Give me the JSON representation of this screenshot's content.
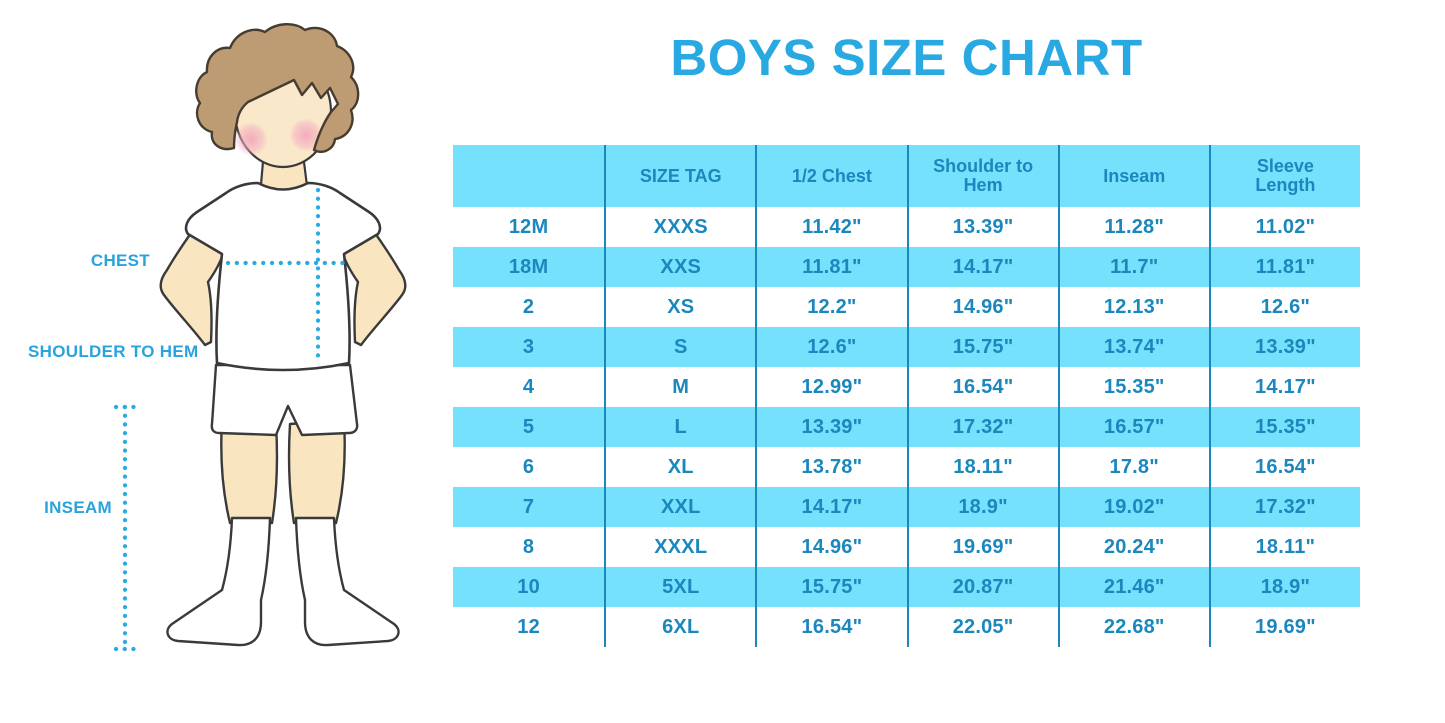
{
  "title": "BOYS SIZE CHART",
  "colors": {
    "accent_cyan_band": "#75E1FC",
    "table_text_blue": "#1A87BD",
    "title_blue": "#29A9E1",
    "dotted_line_blue": "#29ABE2"
  },
  "figure": {
    "description": "illustration of a boy in white t-shirt, shorts and knee socks with dotted measurement guides",
    "labels": {
      "chest": "CHEST",
      "shoulder_to_hem": "SHOULDER TO HEM",
      "inseam": "INSEAM"
    }
  },
  "chart_data": {
    "type": "table",
    "title": "BOYS SIZE CHART",
    "columns": [
      "",
      "SIZE TAG",
      "1/2 Chest",
      "Shoulder to Hem",
      "Inseam",
      "Sleeve Length"
    ],
    "rows": [
      [
        "12M",
        "XXXS",
        "11.42\"",
        "13.39\"",
        "11.28\"",
        "11.02\""
      ],
      [
        "18M",
        "XXS",
        "11.81\"",
        "14.17\"",
        "11.7\"",
        "11.81\""
      ],
      [
        "2",
        "XS",
        "12.2\"",
        "14.96\"",
        "12.13\"",
        "12.6\""
      ],
      [
        "3",
        "S",
        "12.6\"",
        "15.75\"",
        "13.74\"",
        "13.39\""
      ],
      [
        "4",
        "M",
        "12.99\"",
        "16.54\"",
        "15.35\"",
        "14.17\""
      ],
      [
        "5",
        "L",
        "13.39\"",
        "17.32\"",
        "16.57\"",
        "15.35\""
      ],
      [
        "6",
        "XL",
        "13.78\"",
        "18.11\"",
        "17.8\"",
        "16.54\""
      ],
      [
        "7",
        "XXL",
        "14.17\"",
        "18.9\"",
        "19.02\"",
        "17.32\""
      ],
      [
        "8",
        "XXXL",
        "14.96\"",
        "19.69\"",
        "20.24\"",
        "18.11\""
      ],
      [
        "10",
        "5XL",
        "15.75\"",
        "20.87\"",
        "21.46\"",
        "18.9\""
      ],
      [
        "12",
        "6XL",
        "16.54\"",
        "22.05\"",
        "22.68\"",
        "19.69\""
      ]
    ],
    "layout": {
      "banded_rows": "alternating white and cyan starting with white",
      "column_separators": "vertical dark blue lines only, no horizontal borders"
    }
  }
}
